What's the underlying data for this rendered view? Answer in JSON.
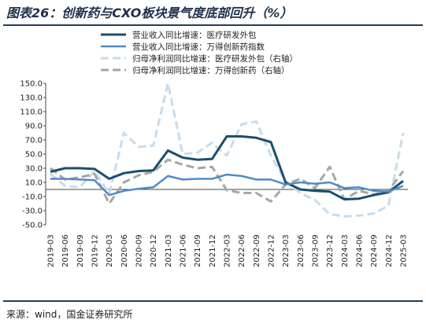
{
  "title": "图表26：创新药与CXO板块景气度底部回升（%）",
  "source": "来源：wind，国金证券研究所",
  "chart_data": {
    "type": "line",
    "categories": [
      "2019-03",
      "2019-06",
      "2019-09",
      "2019-12",
      "2020-03",
      "2020-06",
      "2020-09",
      "2020-12",
      "2021-03",
      "2021-06",
      "2021-09",
      "2021-12",
      "2022-03",
      "2022-06",
      "2022-09",
      "2022-12",
      "2023-03",
      "2023-06",
      "2023-09",
      "2023-12",
      "2024-03",
      "2024-06",
      "2024-09",
      "2024-12",
      "2025-03"
    ],
    "ylim": [
      -50,
      150
    ],
    "yticks": [
      "150.0",
      "130.0",
      "110.0",
      "90.0",
      "70.0",
      "50.0",
      "30.0",
      "10.0",
      "-10.0",
      "-30.0",
      "-50.0"
    ],
    "grid": false,
    "legend_position": "top",
    "series": [
      {
        "name": "营业收入同比增速：医疗研发外包",
        "color": "#1a4f6e",
        "style": "solid",
        "width": 3,
        "values": [
          25,
          30,
          30,
          29,
          15,
          23,
          26,
          27,
          55,
          45,
          42,
          43,
          75,
          75,
          73,
          67,
          10,
          0,
          -2,
          -3,
          -14,
          -13,
          -8,
          -4,
          12
        ]
      },
      {
        "name": "营业收入同比增速：万得创新药指数",
        "color": "#4f8bc9",
        "style": "solid",
        "width": 2.5,
        "values": [
          15,
          15,
          14,
          13,
          -8,
          -2,
          1,
          3,
          19,
          14,
          15,
          15,
          21,
          19,
          14,
          14,
          7,
          10,
          8,
          10,
          2,
          3,
          -2,
          -3,
          5
        ]
      },
      {
        "name": "归母净利润同比增速：医疗研发外包（右轴）",
        "color": "#c8dcea",
        "style": "dash",
        "width": 3,
        "values": [
          22,
          5,
          3,
          26,
          -6,
          80,
          60,
          62,
          150,
          50,
          52,
          66,
          48,
          92,
          96,
          48,
          11,
          -5,
          -15,
          -35,
          -38,
          -37,
          -34,
          -23,
          80
        ]
      },
      {
        "name": "归母净利润同比增速：万得创新药（右轴）",
        "color": "#a6a6a6",
        "style": "dash",
        "width": 3,
        "values": [
          30,
          14,
          17,
          22,
          -20,
          10,
          20,
          25,
          42,
          35,
          30,
          32,
          -1,
          -5,
          -5,
          -17,
          7,
          15,
          2,
          32,
          -14,
          -2,
          -7,
          -2,
          26
        ]
      }
    ]
  }
}
